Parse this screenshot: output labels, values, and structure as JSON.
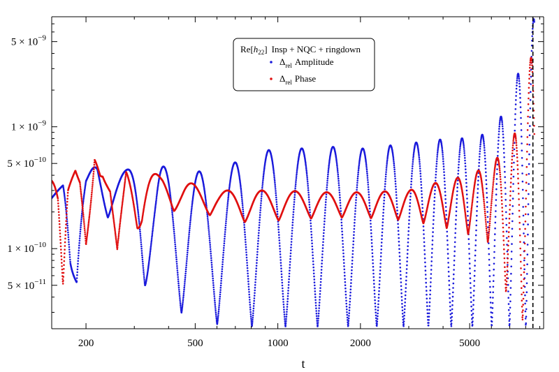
{
  "chart_data": {
    "type": "scatter",
    "title": "",
    "xlabel": "t",
    "ylabel": "",
    "x_scale": "log",
    "y_scale": "log",
    "xlim": [
      150,
      9300
    ],
    "ylim": [
      2.2e-11,
      8e-09
    ],
    "x_ticks": [
      {
        "value": 200,
        "label": "200"
      },
      {
        "value": 500,
        "label": "500"
      },
      {
        "value": 1000,
        "label": "1000"
      },
      {
        "value": 2000,
        "label": "2000"
      },
      {
        "value": 5000,
        "label": "5000"
      }
    ],
    "y_ticks": [
      {
        "value": 5e-09,
        "mantissa": "5",
        "base": "10",
        "exp": "−9"
      },
      {
        "value": 1e-09,
        "mantissa": "1",
        "base": "10",
        "exp": "−9"
      },
      {
        "value": 5e-10,
        "mantissa": "5",
        "base": "10",
        "exp": "−10"
      },
      {
        "value": 1e-10,
        "mantissa": "1",
        "base": "10",
        "exp": "−10"
      },
      {
        "value": 5e-11,
        "mantissa": "5",
        "base": "10",
        "exp": "−11"
      }
    ],
    "vertical_line": {
      "x": 8500,
      "style": "dashed"
    },
    "legend": {
      "placement": "top-center",
      "header": {
        "re": "Re",
        "h": "h",
        "sub": "22",
        "rest": "Insp + NQC + ringdown"
      },
      "delta": "Δ",
      "sub": "rel"
    },
    "series": [
      {
        "name": "Amplitude",
        "color": "#1a1adb",
        "envelope": [
          [
            150,
            2.6e-10,
            2.6e-10
          ],
          [
            165,
            3.2e-10,
            3.4e-10
          ],
          [
            175,
            8e-11,
            2.8e-10
          ],
          [
            185,
            2.8e-11,
            1.2e-10
          ],
          [
            200,
            3.3e-10,
            3.6e-10
          ],
          [
            220,
            2.4e-10,
            5.6e-10
          ],
          [
            240,
            1.8e-10,
            3.6e-10
          ],
          [
            280,
            2.2e-10,
            4.4e-10
          ],
          [
            320,
            6e-11,
            5.3e-10
          ],
          [
            360,
            2.5e-11,
            4.6e-10
          ],
          [
            400,
            3.5e-11,
            4.8e-10
          ],
          [
            500,
            2.5e-11,
            4.4e-10
          ],
          [
            600,
            2.4e-11,
            3.9e-10
          ],
          [
            800,
            2.3e-11,
            6.5e-10
          ],
          [
            1000,
            2.3e-11,
            6.4e-10
          ],
          [
            1500,
            2.3e-11,
            6.9e-10
          ],
          [
            2000,
            2.3e-11,
            6.6e-10
          ],
          [
            3000,
            2.3e-11,
            7.3e-10
          ],
          [
            4000,
            2.3e-11,
            7.9e-10
          ],
          [
            5000,
            2.3e-11,
            8.1e-10
          ],
          [
            6000,
            2.3e-11,
            9e-10
          ],
          [
            7000,
            2.3e-11,
            1.6e-09
          ],
          [
            8000,
            2.3e-11,
            4.5e-09
          ],
          [
            8600,
            2.3e-11,
            8e-09
          ]
        ]
      },
      {
        "name": "Phase",
        "color": "#e01010",
        "envelope": [
          [
            150,
            3.6e-10,
            3.6e-10
          ],
          [
            158,
            2.2e-10,
            3.6e-10
          ],
          [
            165,
            5e-11,
            1.6e-10
          ],
          [
            172,
            2.8e-10,
            3.4e-10
          ],
          [
            183,
            4.2e-10,
            4.4e-10
          ],
          [
            190,
            2.5e-10,
            3.5e-10
          ],
          [
            200,
            3.5e-11,
            1.2e-10
          ],
          [
            215,
            5e-10,
            6e-10
          ],
          [
            230,
            3.6e-10,
            6.2e-10
          ],
          [
            245,
            1.8e-10,
            3.6e-10
          ],
          [
            260,
            3e-11,
            1e-10
          ],
          [
            280,
            3e-10,
            4.7e-10
          ],
          [
            320,
            1.1e-10,
            4.3e-10
          ],
          [
            380,
            2.4e-10,
            4e-10
          ],
          [
            450,
            1.8e-10,
            3.6e-10
          ],
          [
            600,
            1.9e-10,
            3e-10
          ],
          [
            800,
            1.6e-10,
            3e-10
          ],
          [
            1000,
            1.7e-10,
            3e-10
          ],
          [
            1500,
            1.8e-10,
            2.9e-10
          ],
          [
            2000,
            1.8e-10,
            2.9e-10
          ],
          [
            3000,
            1.7e-10,
            3e-10
          ],
          [
            4000,
            1.5e-10,
            3.6e-10
          ],
          [
            5000,
            1.3e-10,
            4e-10
          ],
          [
            6000,
            1.1e-10,
            5e-10
          ],
          [
            7000,
            3.5e-11,
            7e-10
          ],
          [
            8000,
            2.4e-11,
            1.5e-09
          ],
          [
            8600,
            2.3e-11,
            7e-09
          ]
        ]
      }
    ]
  }
}
